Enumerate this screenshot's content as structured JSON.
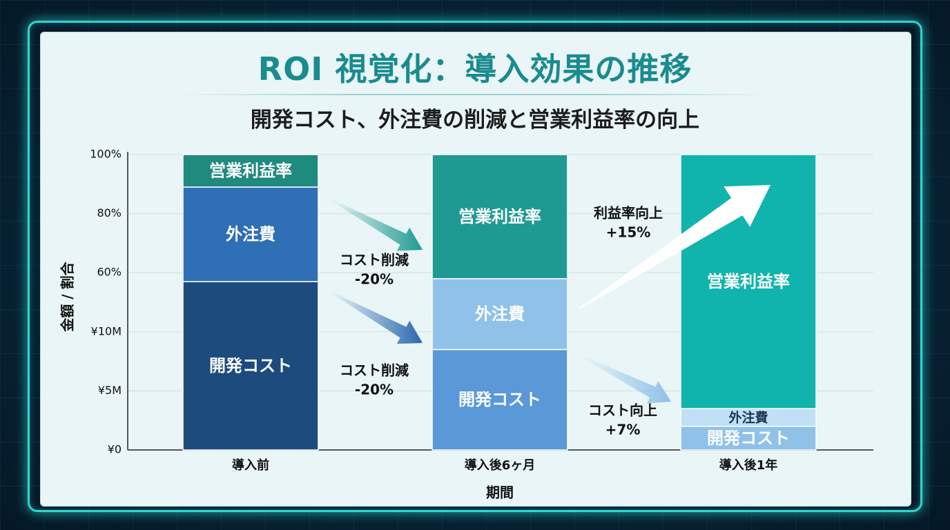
{
  "title": "ROI 視覚化：導入効果の推移",
  "subtitle": "開発コスト、外注費の削減と営業利益率の向上",
  "colors": {
    "frame": "#2fd6d2",
    "panel": "#e9f5f6",
    "title": "#1a8b8f",
    "dev_cost_before": "#1d4b7e",
    "outsourcing_before": "#2e6fb5",
    "margin_before": "#1f8a7e",
    "dev_cost_6m": "#5a98d7",
    "outsourcing_6m": "#8fc1e9",
    "margin_6m": "#1f9a92",
    "dev_cost_1y": "#8fc1e9",
    "outsourcing_1y": "#bfe0f5",
    "margin_1y": "#11b4ad"
  },
  "chart_data": {
    "type": "bar",
    "stacked": true,
    "title": "ROI 視覚化：導入効果の推移",
    "subtitle": "開発コスト、外注費の削減と営業利益率の向上",
    "xlabel": "期間",
    "ylabel": "金額 / 割合",
    "y_tick_labels": [
      "¥0",
      "¥5M",
      "¥10M",
      "60%",
      "80%",
      "100%"
    ],
    "ylim": [
      0,
      100
    ],
    "grid": true,
    "categories": [
      "導入前",
      "導入後6ヶ月",
      "導入後1年"
    ],
    "series": [
      {
        "name": "開発コスト",
        "values": [
          57,
          34,
          8
        ],
        "labels": [
          "開発コスト",
          "開発コスト",
          "開発コスト"
        ]
      },
      {
        "name": "外注費",
        "values": [
          32,
          24,
          6
        ],
        "labels": [
          "外注費",
          "外注費",
          "外注費"
        ]
      },
      {
        "name": "営業利益率",
        "values": [
          11,
          42,
          86
        ],
        "labels": [
          "営業利益率",
          "営業利益率",
          "営業利益率"
        ]
      }
    ],
    "annotations": [
      {
        "text": [
          "コスト削減",
          "-20%"
        ],
        "between": [
          "導入前",
          "導入後6ヶ月"
        ],
        "target": "営業利益率",
        "color": "#1f9a92"
      },
      {
        "text": [
          "コスト削減",
          "-20%"
        ],
        "between": [
          "導入前",
          "導入後6ヶ月"
        ],
        "target": "開発コスト",
        "color": "#2a67ad"
      },
      {
        "text": [
          "利益率向上",
          "+15%"
        ],
        "between": [
          "導入後6ヶ月",
          "導入後1年"
        ],
        "target": "営業利益率",
        "color": "#ffffff"
      },
      {
        "text": [
          "コスト向上",
          "+7%"
        ],
        "between": [
          "導入後6ヶ月",
          "導入後1年"
        ],
        "target": "開発コスト",
        "color": "#8fc1e9"
      }
    ]
  }
}
